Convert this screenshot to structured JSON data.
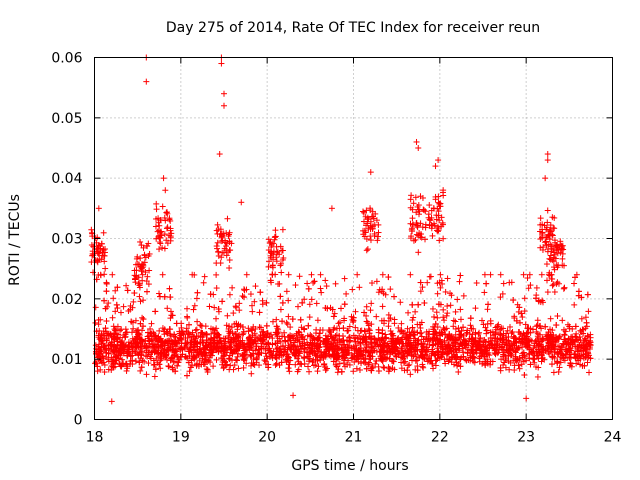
{
  "chart_data": {
    "type": "scatter",
    "title": "Day 275 of 2014, Rate Of TEC Index for receiver reun",
    "xlabel": "GPS time / hours",
    "ylabel": "ROTI / TECUs",
    "xlim": [
      18,
      24
    ],
    "ylim": [
      0,
      0.06
    ],
    "x_ticks": [
      "18",
      "19",
      "20",
      "21",
      "22",
      "23",
      "24"
    ],
    "y_ticks": [
      "0",
      "0.01",
      "0.02",
      "0.03",
      "0.04",
      "0.05",
      "0.06"
    ],
    "grid": true,
    "marker": "+",
    "series_color": "#ff0000",
    "highlight_points": [
      {
        "x": 18.6,
        "y": 0.06
      },
      {
        "x": 18.6,
        "y": 0.056
      },
      {
        "x": 19.47,
        "y": 0.06
      },
      {
        "x": 19.47,
        "y": 0.059
      },
      {
        "x": 19.5,
        "y": 0.054
      },
      {
        "x": 19.5,
        "y": 0.052
      },
      {
        "x": 19.45,
        "y": 0.044
      },
      {
        "x": 18.8,
        "y": 0.04
      },
      {
        "x": 18.82,
        "y": 0.038
      },
      {
        "x": 21.73,
        "y": 0.046
      },
      {
        "x": 21.75,
        "y": 0.045
      },
      {
        "x": 21.98,
        "y": 0.043
      },
      {
        "x": 21.95,
        "y": 0.042
      },
      {
        "x": 23.25,
        "y": 0.044
      },
      {
        "x": 23.25,
        "y": 0.043
      },
      {
        "x": 23.22,
        "y": 0.04
      },
      {
        "x": 21.2,
        "y": 0.041
      },
      {
        "x": 20.75,
        "y": 0.035
      },
      {
        "x": 18.05,
        "y": 0.035
      },
      {
        "x": 19.7,
        "y": 0.036
      },
      {
        "x": 18.2,
        "y": 0.003
      },
      {
        "x": 20.3,
        "y": 0.004
      },
      {
        "x": 23.0,
        "y": 0.0035
      }
    ],
    "bulk_description_points": {
      "x_range": [
        18.0,
        23.75
      ],
      "dense_y_range": [
        0.004,
        0.02
      ],
      "typical_y": 0.012,
      "count": 3600
    }
  }
}
